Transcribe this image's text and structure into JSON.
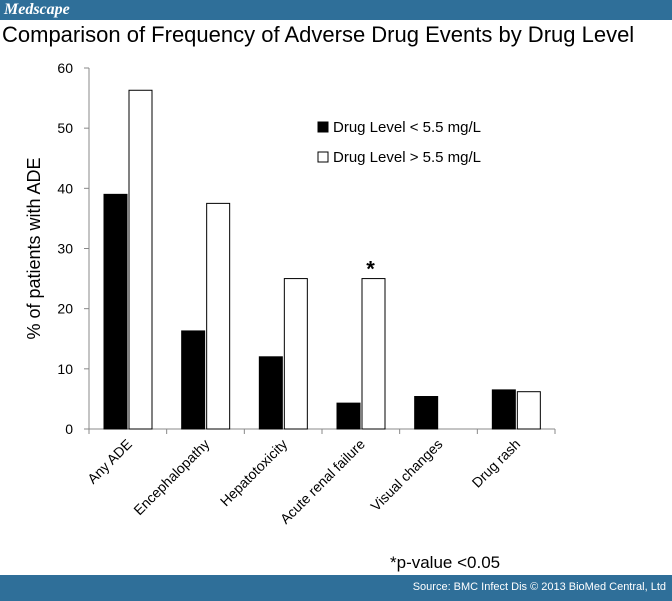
{
  "header": {
    "brand": "Medscape"
  },
  "chart_data": {
    "type": "bar",
    "title": "Comparison of Frequency of Adverse Drug Events by Drug Level",
    "xlabel": "",
    "ylabel": "% of patients with ADE",
    "ylim": [
      0,
      60
    ],
    "yticks": [
      0,
      10,
      20,
      30,
      40,
      50,
      60
    ],
    "categories": [
      "Any ADE",
      "Encephalopathy",
      "Hepatotoxicity",
      "Acute renal failure",
      "Visual changes",
      "Drug rash"
    ],
    "series": [
      {
        "name": "Drug Level < 5.5 mg/L",
        "color": "#000000",
        "values": [
          39,
          16.3,
          12,
          4.3,
          5.4,
          6.5
        ]
      },
      {
        "name": "Drug Level > 5.5 mg/L",
        "color": "#ffffff",
        "values": [
          56.3,
          37.5,
          25,
          25,
          0,
          6.2
        ]
      }
    ],
    "legend_position": "top-right",
    "annotations": [
      {
        "text": "*",
        "category": "Acute renal failure"
      }
    ]
  },
  "footnote": "*p-value <0.05",
  "footer": {
    "source": "Source: BMC Infect Dis © 2013 BioMed Central, Ltd"
  },
  "colors": {
    "brand_bar": "#2f6f99"
  }
}
